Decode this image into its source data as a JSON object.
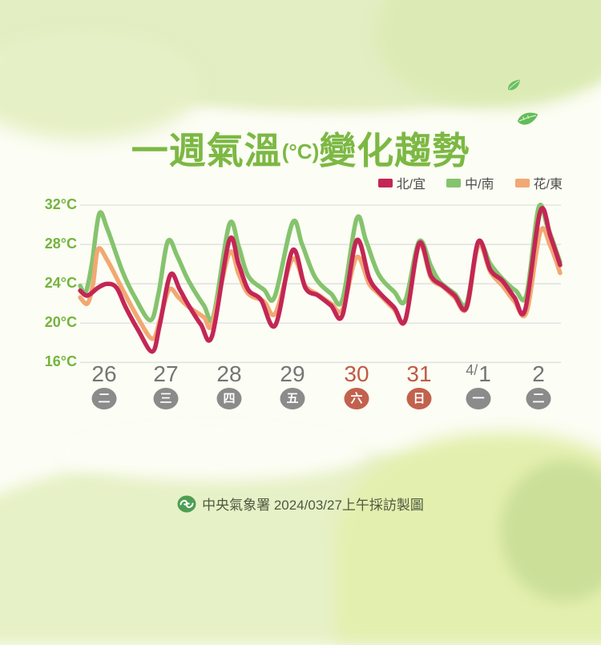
{
  "title": {
    "prefix": "一週氣溫",
    "unit": "(°C)",
    "suffix": "變化趨勢"
  },
  "legend": [
    {
      "label": "北/宜",
      "color": "#c32655"
    },
    {
      "label": "中/南",
      "color": "#85c36e"
    },
    {
      "label": "花/東",
      "color": "#f2a873"
    }
  ],
  "y_axis": {
    "tick_labels": [
      "32°C",
      "28°C",
      "24°C",
      "20°C",
      "16°C"
    ],
    "tick_values": [
      32,
      28,
      24,
      20,
      16
    ]
  },
  "x_axis": {
    "days": [
      {
        "date": "26",
        "date_prefix": "",
        "weekday": "二",
        "weekend": false
      },
      {
        "date": "27",
        "date_prefix": "",
        "weekday": "三",
        "weekend": false
      },
      {
        "date": "28",
        "date_prefix": "",
        "weekday": "四",
        "weekend": false
      },
      {
        "date": "29",
        "date_prefix": "",
        "weekday": "五",
        "weekend": false
      },
      {
        "date": "30",
        "date_prefix": "",
        "weekday": "六",
        "weekend": true
      },
      {
        "date": "31",
        "date_prefix": "",
        "weekday": "日",
        "weekend": true
      },
      {
        "date": "1",
        "date_prefix": "4/",
        "weekday": "一",
        "weekend": false
      },
      {
        "date": "2",
        "date_prefix": "",
        "weekday": "二",
        "weekend": false
      }
    ]
  },
  "footer": {
    "text": "中央氣象署 2024/03/27上午採訪製圖"
  },
  "colors": {
    "title_green": "#7cb843",
    "axis_label_green": "#74b43e",
    "weekday_gray": "#757575",
    "weekend_red": "#c05b45",
    "badge_gray": "#8b8b8b",
    "badge_weekend": "#c2614e",
    "gridline": "#e3e3e3",
    "footer_text": "#4e5a41",
    "logo_green": "#4d9e52",
    "legend_text": "#4c4c4c"
  },
  "chart_data": {
    "type": "line",
    "title": "一週氣溫(°C)變化趨勢",
    "unit": "°C",
    "ylim": [
      16,
      32
    ],
    "y_ticks": [
      16,
      20,
      24,
      28,
      32
    ],
    "grid": "horizontal-only",
    "legend_position": "top-right",
    "x_tick_labels": [
      "26",
      "27",
      "28",
      "29",
      "30",
      "31",
      "4/1",
      "2"
    ],
    "x_scale_note": "x in day units; integer i = center of x tick i (3/26 through 4/2); temps in °C",
    "series": [
      {
        "name": "北/宜",
        "color": "#c32655",
        "points": [
          [
            -0.39,
            23.3
          ],
          [
            -0.27,
            22.8
          ],
          [
            -0.1,
            23.6
          ],
          [
            0.05,
            24.0
          ],
          [
            0.2,
            23.6
          ],
          [
            0.35,
            21.6
          ],
          [
            0.55,
            19.3
          ],
          [
            0.78,
            17.1
          ],
          [
            0.9,
            19.8
          ],
          [
            1.07,
            24.9
          ],
          [
            1.22,
            23.4
          ],
          [
            1.35,
            21.9
          ],
          [
            1.55,
            19.9
          ],
          [
            1.73,
            18.7
          ],
          [
            2.0,
            28.4
          ],
          [
            2.15,
            26.0
          ],
          [
            2.3,
            23.4
          ],
          [
            2.5,
            22.4
          ],
          [
            2.73,
            19.8
          ],
          [
            3.0,
            27.4
          ],
          [
            3.2,
            23.6
          ],
          [
            3.4,
            22.8
          ],
          [
            3.6,
            21.8
          ],
          [
            3.78,
            20.8
          ],
          [
            4.0,
            28.4
          ],
          [
            4.2,
            24.6
          ],
          [
            4.35,
            23.2
          ],
          [
            4.6,
            21.6
          ],
          [
            4.78,
            20.3
          ],
          [
            5.0,
            28.1
          ],
          [
            5.2,
            24.8
          ],
          [
            5.4,
            23.8
          ],
          [
            5.6,
            22.8
          ],
          [
            5.8,
            21.6
          ],
          [
            6.0,
            28.3
          ],
          [
            6.2,
            25.4
          ],
          [
            6.4,
            24.3
          ],
          [
            6.6,
            22.6
          ],
          [
            6.78,
            21.4
          ],
          [
            7.03,
            31.4
          ],
          [
            7.2,
            28.8
          ],
          [
            7.36,
            25.9
          ]
        ]
      },
      {
        "name": "中/南",
        "color": "#85c36e",
        "points": [
          [
            -0.39,
            23.8
          ],
          [
            -0.3,
            23.1
          ],
          [
            -0.2,
            26.0
          ],
          [
            -0.08,
            31.1
          ],
          [
            0.05,
            29.6
          ],
          [
            0.3,
            25.2
          ],
          [
            0.5,
            22.6
          ],
          [
            0.75,
            20.3
          ],
          [
            0.88,
            23.0
          ],
          [
            1.03,
            28.3
          ],
          [
            1.18,
            26.8
          ],
          [
            1.35,
            24.4
          ],
          [
            1.6,
            21.8
          ],
          [
            1.75,
            20.7
          ],
          [
            2.0,
            30.0
          ],
          [
            2.15,
            27.8
          ],
          [
            2.3,
            24.8
          ],
          [
            2.55,
            23.4
          ],
          [
            2.72,
            22.7
          ],
          [
            3.0,
            30.2
          ],
          [
            3.15,
            28.0
          ],
          [
            3.35,
            24.7
          ],
          [
            3.6,
            23.0
          ],
          [
            3.78,
            22.4
          ],
          [
            4.0,
            30.6
          ],
          [
            4.15,
            28.4
          ],
          [
            4.35,
            25.0
          ],
          [
            4.6,
            23.2
          ],
          [
            4.78,
            22.3
          ],
          [
            5.0,
            28.3
          ],
          [
            5.2,
            25.8
          ],
          [
            5.35,
            24.2
          ],
          [
            5.6,
            23.0
          ],
          [
            5.8,
            22.0
          ],
          [
            6.0,
            28.1
          ],
          [
            6.2,
            26.0
          ],
          [
            6.4,
            24.5
          ],
          [
            6.62,
            23.3
          ],
          [
            6.8,
            22.9
          ],
          [
            7.0,
            31.7
          ],
          [
            7.15,
            29.8
          ],
          [
            7.36,
            26.2
          ]
        ]
      },
      {
        "name": "花/東",
        "color": "#f2a873",
        "points": [
          [
            -0.39,
            22.6
          ],
          [
            -0.27,
            22.0
          ],
          [
            -0.18,
            24.0
          ],
          [
            -0.1,
            27.5
          ],
          [
            0.05,
            26.4
          ],
          [
            0.3,
            23.4
          ],
          [
            0.55,
            20.5
          ],
          [
            0.78,
            18.4
          ],
          [
            0.9,
            20.2
          ],
          [
            1.05,
            23.4
          ],
          [
            1.2,
            22.6
          ],
          [
            1.35,
            21.7
          ],
          [
            1.6,
            20.6
          ],
          [
            1.73,
            19.9
          ],
          [
            2.0,
            27.1
          ],
          [
            2.15,
            25.0
          ],
          [
            2.3,
            23.0
          ],
          [
            2.55,
            22.2
          ],
          [
            2.73,
            21.0
          ],
          [
            3.0,
            26.5
          ],
          [
            3.2,
            23.8
          ],
          [
            3.4,
            22.9
          ],
          [
            3.6,
            22.0
          ],
          [
            3.78,
            21.4
          ],
          [
            4.0,
            26.7
          ],
          [
            4.2,
            24.0
          ],
          [
            4.35,
            23.0
          ],
          [
            4.6,
            21.4
          ],
          [
            4.78,
            20.3
          ],
          [
            5.0,
            27.9
          ],
          [
            5.2,
            24.6
          ],
          [
            5.4,
            23.7
          ],
          [
            5.6,
            22.6
          ],
          [
            5.8,
            21.5
          ],
          [
            6.0,
            27.9
          ],
          [
            6.2,
            25.2
          ],
          [
            6.4,
            23.8
          ],
          [
            6.6,
            22.2
          ],
          [
            6.8,
            21.1
          ],
          [
            7.03,
            29.3
          ],
          [
            7.2,
            27.8
          ],
          [
            7.36,
            25.1
          ]
        ]
      }
    ]
  }
}
